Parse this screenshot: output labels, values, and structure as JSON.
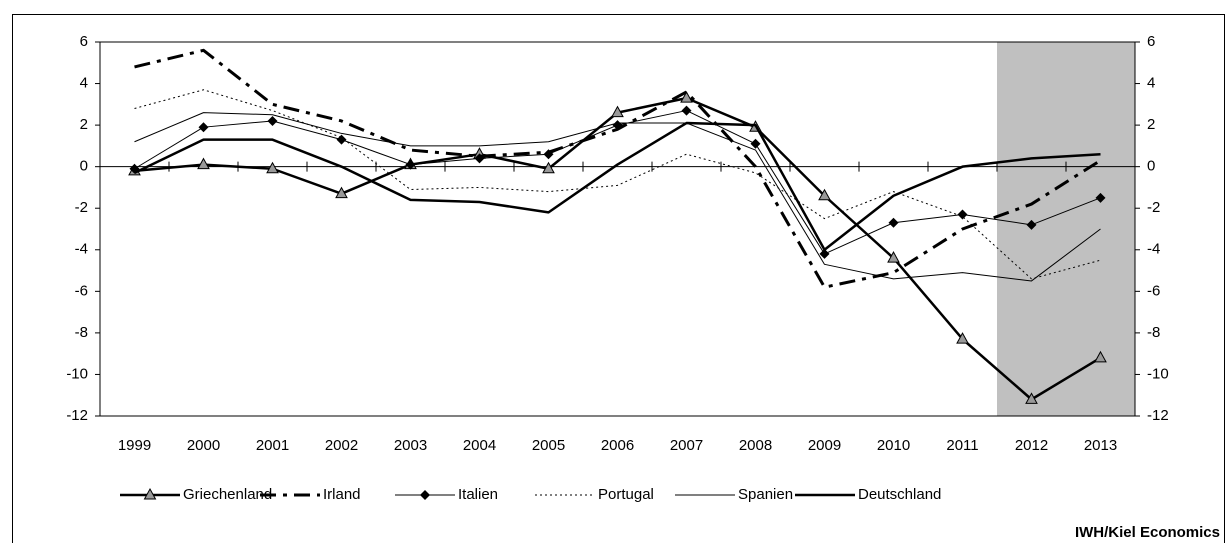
{
  "chart_data": {
    "type": "line",
    "categories": [
      "1999",
      "2000",
      "2001",
      "2002",
      "2003",
      "2004",
      "2005",
      "2006",
      "2007",
      "2008",
      "2009",
      "2010",
      "2011",
      "2012",
      "2013"
    ],
    "series": [
      {
        "name": "Griechenland",
        "color": "#000000",
        "width": 2.5,
        "dash": "solid",
        "marker": "triangle",
        "marker_color": "#999999",
        "values": [
          -0.2,
          0.1,
          -0.1,
          -1.3,
          0.1,
          0.6,
          -0.1,
          2.6,
          3.3,
          1.9,
          -1.4,
          -4.4,
          -8.3,
          -11.2,
          -9.2
        ]
      },
      {
        "name": "Irland",
        "color": "#000000",
        "width": 3,
        "dash": "dash-dot",
        "marker": "none",
        "values": [
          4.8,
          5.6,
          3.0,
          2.2,
          0.8,
          0.5,
          0.7,
          1.8,
          3.6,
          0.0,
          -5.8,
          -5.1,
          -3.0,
          -1.8,
          0.3
        ]
      },
      {
        "name": "Italien",
        "color": "#000000",
        "width": 1,
        "dash": "solid",
        "marker": "diamond",
        "marker_color": "#000000",
        "values": [
          -0.1,
          1.9,
          2.2,
          1.3,
          0.1,
          0.4,
          0.6,
          2.0,
          2.7,
          1.1,
          -4.2,
          -2.7,
          -2.3,
          -2.8,
          -1.5
        ]
      },
      {
        "name": "Portugal",
        "color": "#000000",
        "width": 1,
        "dash": "dot",
        "marker": "none",
        "values": [
          2.8,
          3.7,
          2.7,
          1.4,
          -1.1,
          -1.0,
          -1.2,
          -0.9,
          0.6,
          -0.3,
          -2.5,
          -1.2,
          -2.4,
          -5.4,
          -4.5
        ]
      },
      {
        "name": "Spanien",
        "color": "#000000",
        "width": 1,
        "dash": "solid",
        "marker": "none",
        "values": [
          1.2,
          2.6,
          2.5,
          1.6,
          1.0,
          1.0,
          1.2,
          2.1,
          2.1,
          0.8,
          -4.7,
          -5.4,
          -5.1,
          -5.5,
          -3.0
        ]
      },
      {
        "name": "Deutschland",
        "color": "#000000",
        "width": 2.5,
        "dash": "solid",
        "marker": "none",
        "values": [
          -0.3,
          1.3,
          1.3,
          0.0,
          -1.6,
          -1.7,
          -2.2,
          0.1,
          2.1,
          2.0,
          -4.0,
          -1.4,
          0.0,
          0.4,
          0.6
        ]
      }
    ],
    "ylim": [
      -12,
      6
    ],
    "yticks": [
      -12,
      -10,
      -8,
      -6,
      -4,
      -2,
      0,
      2,
      4,
      6
    ],
    "y2lim": [
      -12,
      6
    ],
    "y2ticks": [
      -12,
      -10,
      -8,
      -6,
      -4,
      -2,
      0,
      2,
      4,
      6
    ],
    "grid": false,
    "legend": "bottom",
    "shade_color": "#c0c0c0",
    "source": "IWH/Kiel Economics"
  }
}
